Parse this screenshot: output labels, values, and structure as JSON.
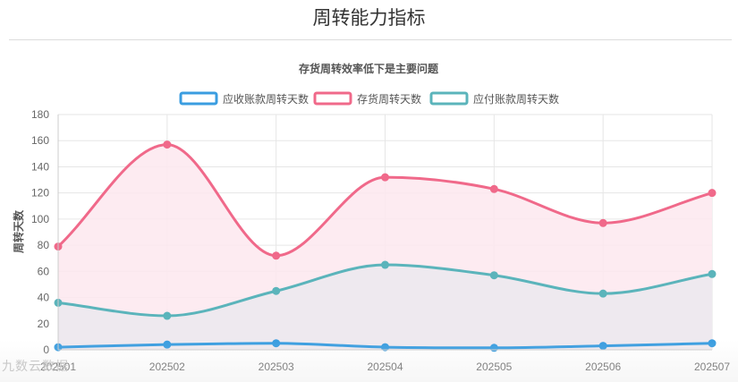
{
  "page": {
    "title": "周转能力指标"
  },
  "watermark": "九数云数据",
  "chart_data": {
    "type": "line",
    "title": "存货周转效率低下是主要问题",
    "ylabel": "周转天数",
    "xlabel": "",
    "categories": [
      "202501",
      "202502",
      "202503",
      "202504",
      "202505",
      "202506",
      "202507"
    ],
    "ylim": [
      0,
      180
    ],
    "yticks": [
      0,
      20,
      40,
      60,
      80,
      100,
      120,
      140,
      160,
      180
    ],
    "grid": true,
    "legend_position": "top-center",
    "series": [
      {
        "name": "应收账款周转天数",
        "values": [
          2,
          4,
          5,
          2,
          1.5,
          3,
          5
        ],
        "color": "#3a9de0",
        "fill": "none"
      },
      {
        "name": "存货周转天数",
        "values": [
          79,
          157,
          72,
          132,
          123,
          97,
          120
        ],
        "color": "#f0698a",
        "fill": "#fde8ee"
      },
      {
        "name": "应付账款周转天数",
        "values": [
          36,
          26,
          45,
          65,
          57,
          43,
          58
        ],
        "color": "#5bb4bb",
        "fill": "#ebe9ee"
      }
    ]
  }
}
